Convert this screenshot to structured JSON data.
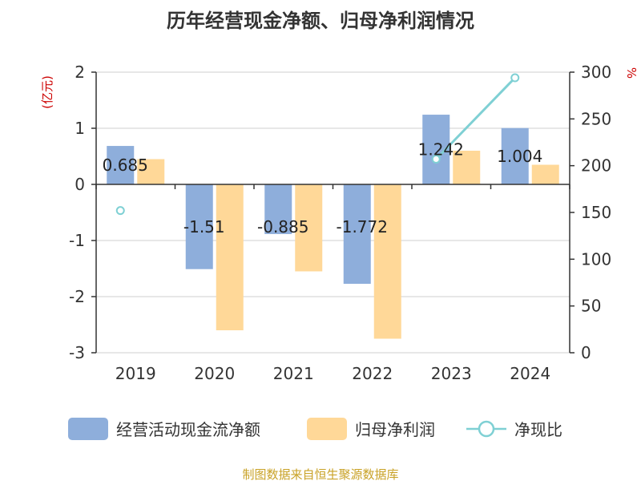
{
  "title": "历年经营现金净额、归母净利润情况",
  "source": "制图数据来自恒生聚源数据库",
  "colors": {
    "cashflow": "#8eaedb",
    "profit": "#ffd898",
    "ratio": "#7fd0d4",
    "unit_text": "#cc0000",
    "source_text": "#c9a227",
    "axis": "#333333",
    "grid": "#cfcfcf"
  },
  "chart_data": {
    "type": "bar",
    "title": "历年经营现金净额、归母净利润情况",
    "categories": [
      "2019",
      "2020",
      "2021",
      "2022",
      "2023",
      "2024"
    ],
    "left_axis": {
      "unit_label": "(亿元)",
      "range": [
        -3,
        2
      ],
      "ticks": [
        "2",
        "1",
        "0",
        "-1",
        "-2",
        "-3"
      ]
    },
    "right_axis": {
      "unit_label": "%",
      "range": [
        0,
        300
      ],
      "ticks": [
        "300",
        "250",
        "200",
        "150",
        "100",
        "50",
        "0"
      ]
    },
    "grid": true,
    "legend_position": "bottom",
    "series": [
      {
        "name": "经营活动现金流净额",
        "type": "bar",
        "axis": "left",
        "values": [
          0.685,
          -1.51,
          -0.885,
          -1.772,
          1.242,
          1.004
        ],
        "labels": [
          "0.685",
          "-1.51",
          "-0.885",
          "-1.772",
          "1.242",
          "1.004"
        ]
      },
      {
        "name": "归母净利润",
        "type": "bar",
        "axis": "left",
        "values": [
          0.45,
          -2.6,
          -1.55,
          -2.75,
          0.6,
          0.35
        ]
      },
      {
        "name": "净现比",
        "type": "line",
        "axis": "right",
        "values": [
          152,
          null,
          null,
          null,
          207,
          294
        ]
      }
    ]
  }
}
